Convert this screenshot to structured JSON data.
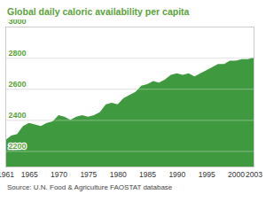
{
  "chart_data": {
    "type": "area",
    "title": "Global daily caloric availability per capita",
    "source": "Source: U.N. Food & Agriculture FAOSTAT database",
    "x": [
      1961,
      1962,
      1963,
      1964,
      1965,
      1966,
      1967,
      1968,
      1969,
      1970,
      1971,
      1972,
      1973,
      1974,
      1975,
      1976,
      1977,
      1978,
      1979,
      1980,
      1981,
      1982,
      1983,
      1984,
      1985,
      1986,
      1987,
      1988,
      1989,
      1990,
      1991,
      1992,
      1993,
      1994,
      1995,
      1996,
      1997,
      1998,
      1999,
      2000,
      2001,
      2002,
      2003
    ],
    "values": [
      2270,
      2300,
      2310,
      2360,
      2380,
      2370,
      2360,
      2380,
      2390,
      2430,
      2420,
      2400,
      2420,
      2430,
      2420,
      2430,
      2450,
      2500,
      2510,
      2500,
      2540,
      2560,
      2580,
      2620,
      2630,
      2650,
      2640,
      2660,
      2690,
      2700,
      2690,
      2700,
      2680,
      2700,
      2720,
      2740,
      2760,
      2760,
      2780,
      2780,
      2790,
      2790,
      2800
    ],
    "color": "#3f9a3f",
    "xlim": [
      1961,
      2003
    ],
    "xticks": [
      1961,
      1965,
      1970,
      1975,
      1980,
      1985,
      1990,
      1995,
      2000,
      2003
    ],
    "ylim": [
      2100,
      3000
    ],
    "yticks": [
      2200,
      2400,
      2600,
      2800,
      3000
    ],
    "grid": true
  }
}
